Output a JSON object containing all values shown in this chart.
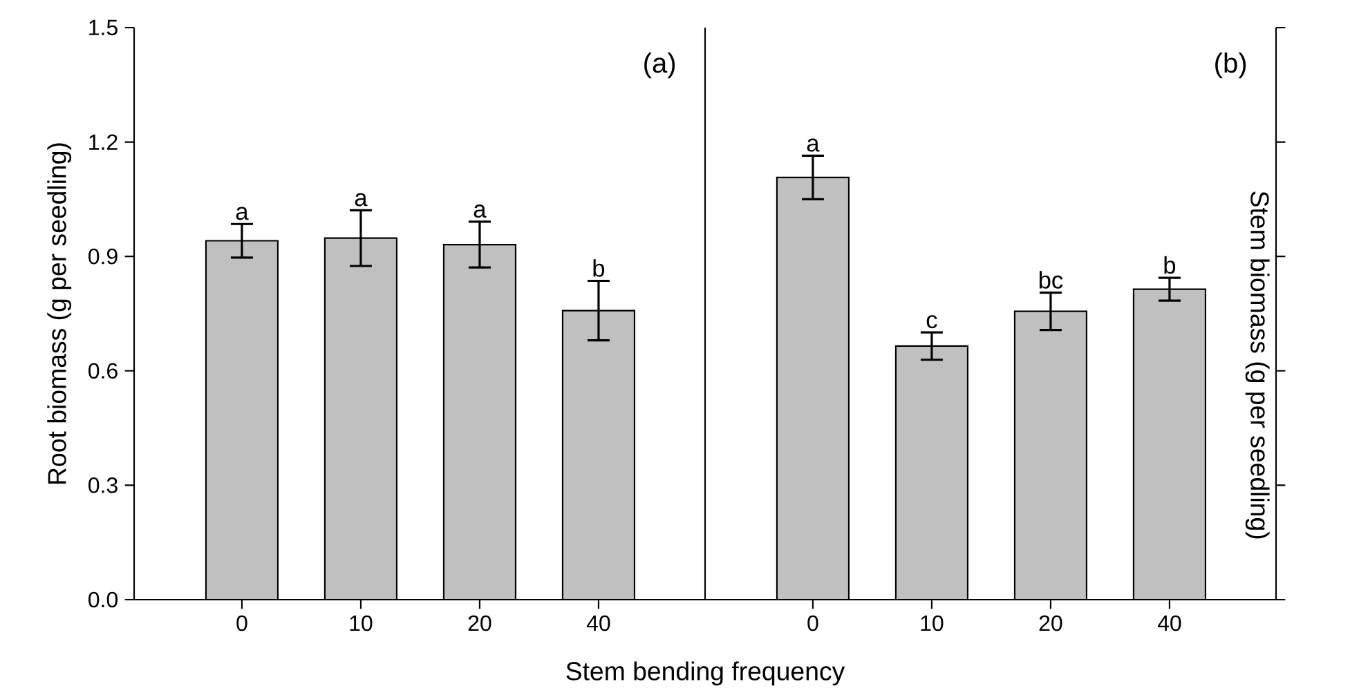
{
  "chart_data": [
    {
      "type": "bar",
      "categories": [
        "0",
        "10",
        "20",
        "40"
      ],
      "values": [
        0.941,
        0.948,
        0.931,
        0.758
      ],
      "errors": [
        0.044,
        0.073,
        0.06,
        0.078
      ],
      "color": "#c0c0c0",
      "value_labels": [
        "a",
        "a",
        "a",
        "b"
      ],
      "ylim": [
        0,
        1.5
      ],
      "yticks": [
        {
          "value": 0,
          "label": "0.0"
        },
        0.3,
        0.6,
        0.9,
        1.2,
        1.5
      ],
      "ylabel": "Root biomass (g per seedling)",
      "xlabel": "Stem bending frequency",
      "annotations": [
        "(a)"
      ]
    },
    {
      "type": "bar",
      "categories": [
        "0",
        "10",
        "20",
        "40"
      ],
      "values": [
        1.107,
        0.665,
        0.756,
        0.814
      ],
      "errors": [
        0.057,
        0.036,
        0.049,
        0.03
      ],
      "color": "#c0c0c0",
      "value_labels": [
        "a",
        "c",
        "bc",
        "b"
      ],
      "ylim": [
        0,
        1.5
      ],
      "yticks": [
        {
          "value": 0,
          "label": null
        },
        {
          "value": 0.3,
          "label": null
        },
        {
          "value": 0.6,
          "label": null
        },
        {
          "value": 0.9,
          "label": null
        },
        {
          "value": 1.2,
          "label": null
        },
        {
          "value": 1.5,
          "label": null
        }
      ],
      "ylabel": "Stem biomass (g per seedling)",
      "tick_labels": "x",
      "annotations": [
        "(b)"
      ]
    }
  ]
}
